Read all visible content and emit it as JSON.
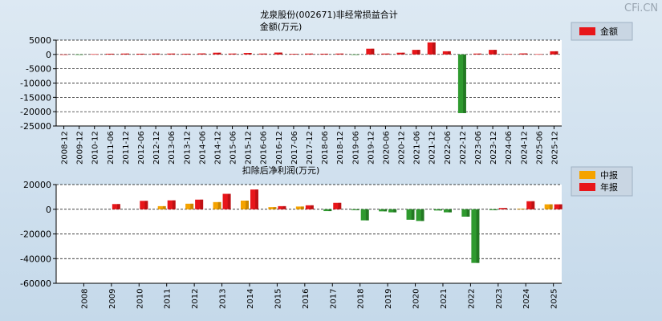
{
  "watermark": "CFi.CN",
  "colors": {
    "red": "#e8161a",
    "red_dark": "#9a0e10",
    "green": "#2f9a2f",
    "green_dark": "#1a5e1a",
    "orange": "#f5a300",
    "orange_dark": "#a86f00"
  },
  "chart_data": [
    {
      "type": "bar",
      "title": "龙泉股份(002671)非经常损益合计",
      "subtitle": "金额(万元)",
      "legend": [
        {
          "label": "金额",
          "color": "#e8161a"
        }
      ],
      "legend_position": "top-right",
      "grid": true,
      "ylim": [
        -25000,
        5000
      ],
      "yticks": [
        5000,
        0,
        -5000,
        -10000,
        -15000,
        -20000,
        -25000
      ],
      "categories": [
        "2008-12",
        "2009-12",
        "2010-12",
        "2011-06",
        "2011-12",
        "2012-06",
        "2012-12",
        "2013-06",
        "2013-12",
        "2014-06",
        "2014-12",
        "2015-06",
        "2015-12",
        "2016-06",
        "2016-12",
        "2017-06",
        "2017-12",
        "2018-06",
        "2018-12",
        "2019-06",
        "2019-12",
        "2020-06",
        "2020-12",
        "2021-06",
        "2021-12",
        "2022-06",
        "2022-12",
        "2023-06",
        "2023-12",
        "2024-06",
        "2024-12",
        "2025-06",
        "2025-12"
      ],
      "values": [
        0,
        -100,
        100,
        250,
        300,
        250,
        300,
        300,
        250,
        350,
        600,
        300,
        500,
        300,
        650,
        200,
        300,
        250,
        300,
        -100,
        2000,
        300,
        600,
        1600,
        4200,
        1100,
        -20500,
        300,
        1600,
        150,
        350,
        100,
        1100
      ]
    },
    {
      "type": "bar",
      "title": "扣除后净利润(万元)",
      "legend": [
        {
          "label": "中报",
          "color": "#f5a300"
        },
        {
          "label": "年报",
          "color": "#e8161a"
        }
      ],
      "legend_position": "top-right",
      "grid": true,
      "ylim": [
        -60000,
        20000
      ],
      "yticks": [
        20000,
        0,
        -20000,
        -40000,
        -60000
      ],
      "categories": [
        "2008",
        "2009",
        "2010",
        "2011",
        "2012",
        "2013",
        "2014",
        "2015",
        "2016",
        "2017",
        "2018",
        "2019",
        "2020",
        "2021",
        "2022",
        "2023",
        "2024",
        "2025"
      ],
      "series": [
        {
          "name": "中报",
          "values": [
            null,
            null,
            null,
            2500,
            4500,
            5800,
            7000,
            1700,
            2200,
            -1500,
            -700,
            -1700,
            -8500,
            -1000,
            -6000,
            -700,
            500,
            4000
          ]
        },
        {
          "name": "年报",
          "values": [
            null,
            4200,
            6800,
            7200,
            7800,
            12500,
            16000,
            2500,
            3200,
            5200,
            -9000,
            -2500,
            -9500,
            -2500,
            -43500,
            1000,
            6500,
            4000
          ]
        }
      ]
    }
  ]
}
